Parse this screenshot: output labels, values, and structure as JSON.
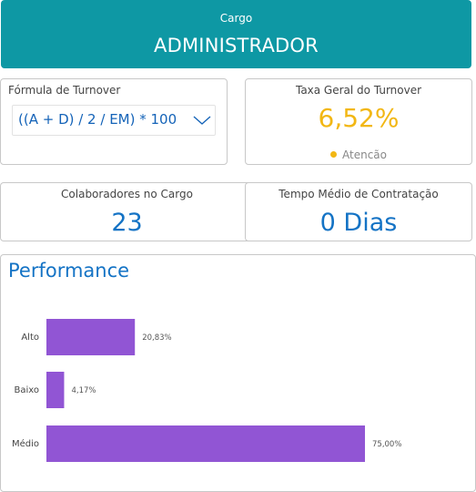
{
  "header": {
    "caption": "Cargo",
    "role": "ADMINISTRADOR"
  },
  "formula": {
    "title": "Fórmula de Turnover",
    "selected": "((A + D) / 2 / EM) * 100"
  },
  "rate": {
    "title": "Taxa Geral do Turnover",
    "value": "6,52%",
    "status": "Atencão",
    "status_color": "#f2b714"
  },
  "employees": {
    "title": "Colaboradores no Cargo",
    "value": "23"
  },
  "hire_time": {
    "title": "Tempo Médio de Contratação",
    "value": "0 Dias"
  },
  "performance": {
    "title": "Performance",
    "bar_color": "#9155d4",
    "chart_data": {
      "type": "bar",
      "orientation": "horizontal",
      "categories": [
        "Alto",
        "Baixo",
        "Médio"
      ],
      "values": [
        20.83,
        4.17,
        75.0
      ],
      "value_labels": [
        "20,83%",
        "4,17%",
        "75,00%"
      ],
      "xlim": [
        0,
        75
      ]
    }
  },
  "colors": {
    "header": "#0e98a4",
    "accent": "#1473c5",
    "warning": "#f2b714"
  }
}
